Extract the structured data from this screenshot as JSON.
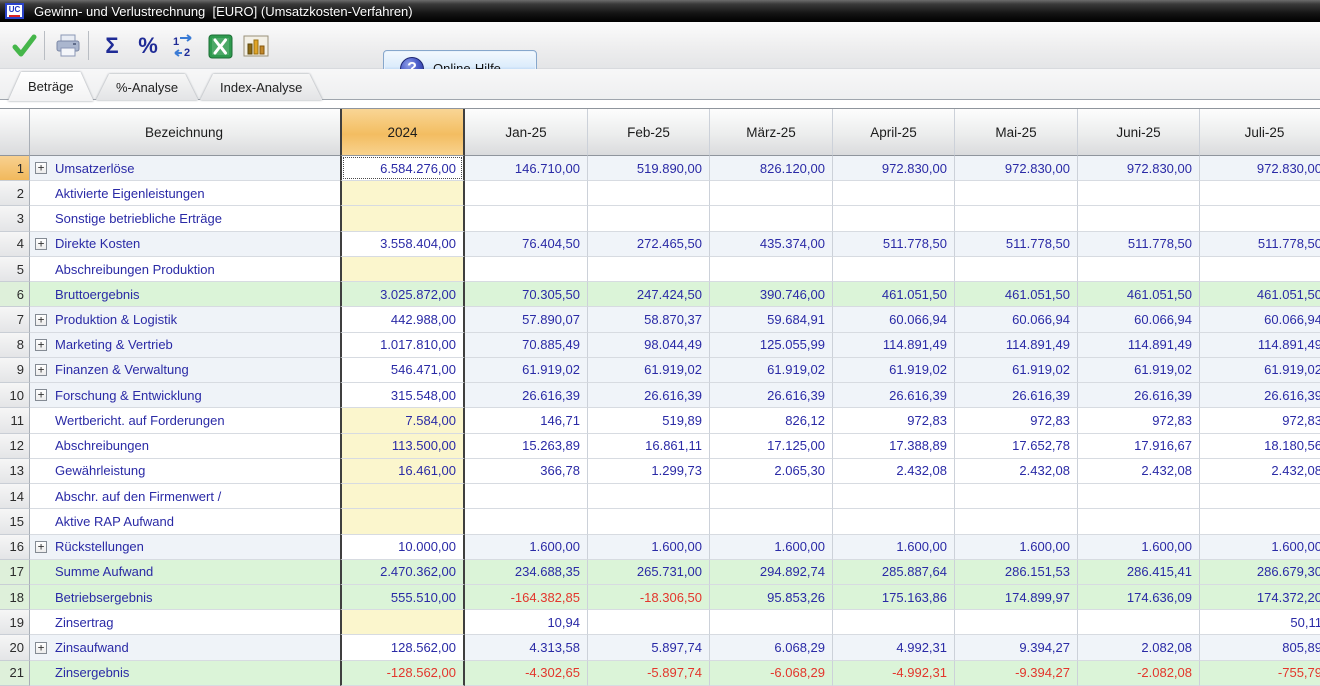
{
  "window": {
    "title": "Gewinn- und Verlustrechnung  [EURO] (Umsatzkosten-Verfahren)",
    "logo_text": "UC"
  },
  "toolbar": {
    "icons": [
      "confirm-check",
      "print",
      "sum-sigma",
      "percent",
      "index-order",
      "excel-export",
      "chart"
    ],
    "sigma_glyph": "Σ",
    "percent_glyph": "%",
    "help_button": {
      "label": "Online-Hilfe",
      "icon_glyph": "?"
    }
  },
  "tabs": [
    {
      "label": "Beträge",
      "active": true
    },
    {
      "label": "%-Analyse",
      "active": false
    },
    {
      "label": "Index-Analyse",
      "active": false
    }
  ],
  "table": {
    "columns": [
      "Bezeichnung",
      "2024",
      "Jan-25",
      "Feb-25",
      "März-25",
      "April-25",
      "Mai-25",
      "Juni-25",
      "Juli-25"
    ],
    "selection": {
      "row_num": 1,
      "column": "2024",
      "value": "6.584.276,00"
    },
    "colors": {
      "accent_selected_column": "#f3bd61",
      "result_row": "#dbf4d8",
      "editable_cell": "#fbf6cd",
      "group_row": "#eff3f8",
      "value_text": "#2a2aa6",
      "negative_text": "#e3362c"
    },
    "rows": [
      {
        "num": 1,
        "label": "Umsatzerlöse",
        "type": "group",
        "expandable": true,
        "values": [
          "6.584.276,00",
          "146.710,00",
          "519.890,00",
          "826.120,00",
          "972.830,00",
          "972.830,00",
          "972.830,00",
          "972.830,00"
        ]
      },
      {
        "num": 2,
        "label": "Aktivierte Eigenleistungen",
        "type": "plain",
        "expandable": false,
        "values": [
          "",
          "",
          "",
          "",
          "",
          "",
          "",
          ""
        ]
      },
      {
        "num": 3,
        "label": "Sonstige betriebliche Erträge",
        "type": "plain",
        "expandable": false,
        "values": [
          "",
          "",
          "",
          "",
          "",
          "",
          "",
          ""
        ]
      },
      {
        "num": 4,
        "label": "Direkte Kosten",
        "type": "group",
        "expandable": true,
        "values": [
          "3.558.404,00",
          "76.404,50",
          "272.465,50",
          "435.374,00",
          "511.778,50",
          "511.778,50",
          "511.778,50",
          "511.778,50"
        ]
      },
      {
        "num": 5,
        "label": "Abschreibungen Produktion",
        "type": "plain",
        "expandable": false,
        "values": [
          "",
          "",
          "",
          "",
          "",
          "",
          "",
          ""
        ]
      },
      {
        "num": 6,
        "label": "Bruttoergebnis",
        "type": "result",
        "expandable": false,
        "values": [
          "3.025.872,00",
          "70.305,50",
          "247.424,50",
          "390.746,00",
          "461.051,50",
          "461.051,50",
          "461.051,50",
          "461.051,50"
        ]
      },
      {
        "num": 7,
        "label": "Produktion & Logistik",
        "type": "group",
        "expandable": true,
        "values": [
          "442.988,00",
          "57.890,07",
          "58.870,37",
          "59.684,91",
          "60.066,94",
          "60.066,94",
          "60.066,94",
          "60.066,94"
        ]
      },
      {
        "num": 8,
        "label": "Marketing & Vertrieb",
        "type": "group",
        "expandable": true,
        "values": [
          "1.017.810,00",
          "70.885,49",
          "98.044,49",
          "125.055,99",
          "114.891,49",
          "114.891,49",
          "114.891,49",
          "114.891,49"
        ]
      },
      {
        "num": 9,
        "label": "Finanzen & Verwaltung",
        "type": "group",
        "expandable": true,
        "values": [
          "546.471,00",
          "61.919,02",
          "61.919,02",
          "61.919,02",
          "61.919,02",
          "61.919,02",
          "61.919,02",
          "61.919,02"
        ]
      },
      {
        "num": 10,
        "label": "Forschung & Entwicklung",
        "type": "group",
        "expandable": true,
        "values": [
          "315.548,00",
          "26.616,39",
          "26.616,39",
          "26.616,39",
          "26.616,39",
          "26.616,39",
          "26.616,39",
          "26.616,39"
        ]
      },
      {
        "num": 11,
        "label": "Wertbericht. auf Forderungen",
        "type": "plain",
        "expandable": false,
        "values": [
          "7.584,00",
          "146,71",
          "519,89",
          "826,12",
          "972,83",
          "972,83",
          "972,83",
          "972,83"
        ]
      },
      {
        "num": 12,
        "label": "Abschreibungen",
        "type": "plain",
        "expandable": false,
        "values": [
          "113.500,00",
          "15.263,89",
          "16.861,11",
          "17.125,00",
          "17.388,89",
          "17.652,78",
          "17.916,67",
          "18.180,56"
        ]
      },
      {
        "num": 13,
        "label": "Gewährleistung",
        "type": "plain",
        "expandable": false,
        "values": [
          "16.461,00",
          "366,78",
          "1.299,73",
          "2.065,30",
          "2.432,08",
          "2.432,08",
          "2.432,08",
          "2.432,08"
        ]
      },
      {
        "num": 14,
        "label": "Abschr. auf den Firmenwert /",
        "type": "plain",
        "expandable": false,
        "values": [
          "",
          "",
          "",
          "",
          "",
          "",
          "",
          ""
        ]
      },
      {
        "num": 15,
        "label": "Aktive RAP Aufwand",
        "type": "plain",
        "expandable": false,
        "values": [
          "",
          "",
          "",
          "",
          "",
          "",
          "",
          ""
        ]
      },
      {
        "num": 16,
        "label": "Rückstellungen",
        "type": "group",
        "expandable": true,
        "values": [
          "10.000,00",
          "1.600,00",
          "1.600,00",
          "1.600,00",
          "1.600,00",
          "1.600,00",
          "1.600,00",
          "1.600,00"
        ]
      },
      {
        "num": 17,
        "label": "Summe Aufwand",
        "type": "result",
        "expandable": false,
        "values": [
          "2.470.362,00",
          "234.688,35",
          "265.731,00",
          "294.892,74",
          "285.887,64",
          "286.151,53",
          "286.415,41",
          "286.679,30"
        ]
      },
      {
        "num": 18,
        "label": "Betriebsergebnis",
        "type": "result",
        "expandable": false,
        "values": [
          "555.510,00",
          "-164.382,85",
          "-18.306,50",
          "95.853,26",
          "175.163,86",
          "174.899,97",
          "174.636,09",
          "174.372,20"
        ]
      },
      {
        "num": 19,
        "label": "Zinsertrag",
        "type": "plain",
        "expandable": false,
        "values": [
          "",
          "10,94",
          "",
          "",
          "",
          "",
          "",
          "50,11"
        ]
      },
      {
        "num": 20,
        "label": "Zinsaufwand",
        "type": "group",
        "expandable": true,
        "values": [
          "128.562,00",
          "4.313,58",
          "5.897,74",
          "6.068,29",
          "4.992,31",
          "9.394,27",
          "2.082,08",
          "805,89"
        ]
      },
      {
        "num": 21,
        "label": "Zinsergebnis",
        "type": "result",
        "expandable": false,
        "values": [
          "-128.562,00",
          "-4.302,65",
          "-5.897,74",
          "-6.068,29",
          "-4.992,31",
          "-9.394,27",
          "-2.082,08",
          "-755,79"
        ]
      }
    ]
  }
}
